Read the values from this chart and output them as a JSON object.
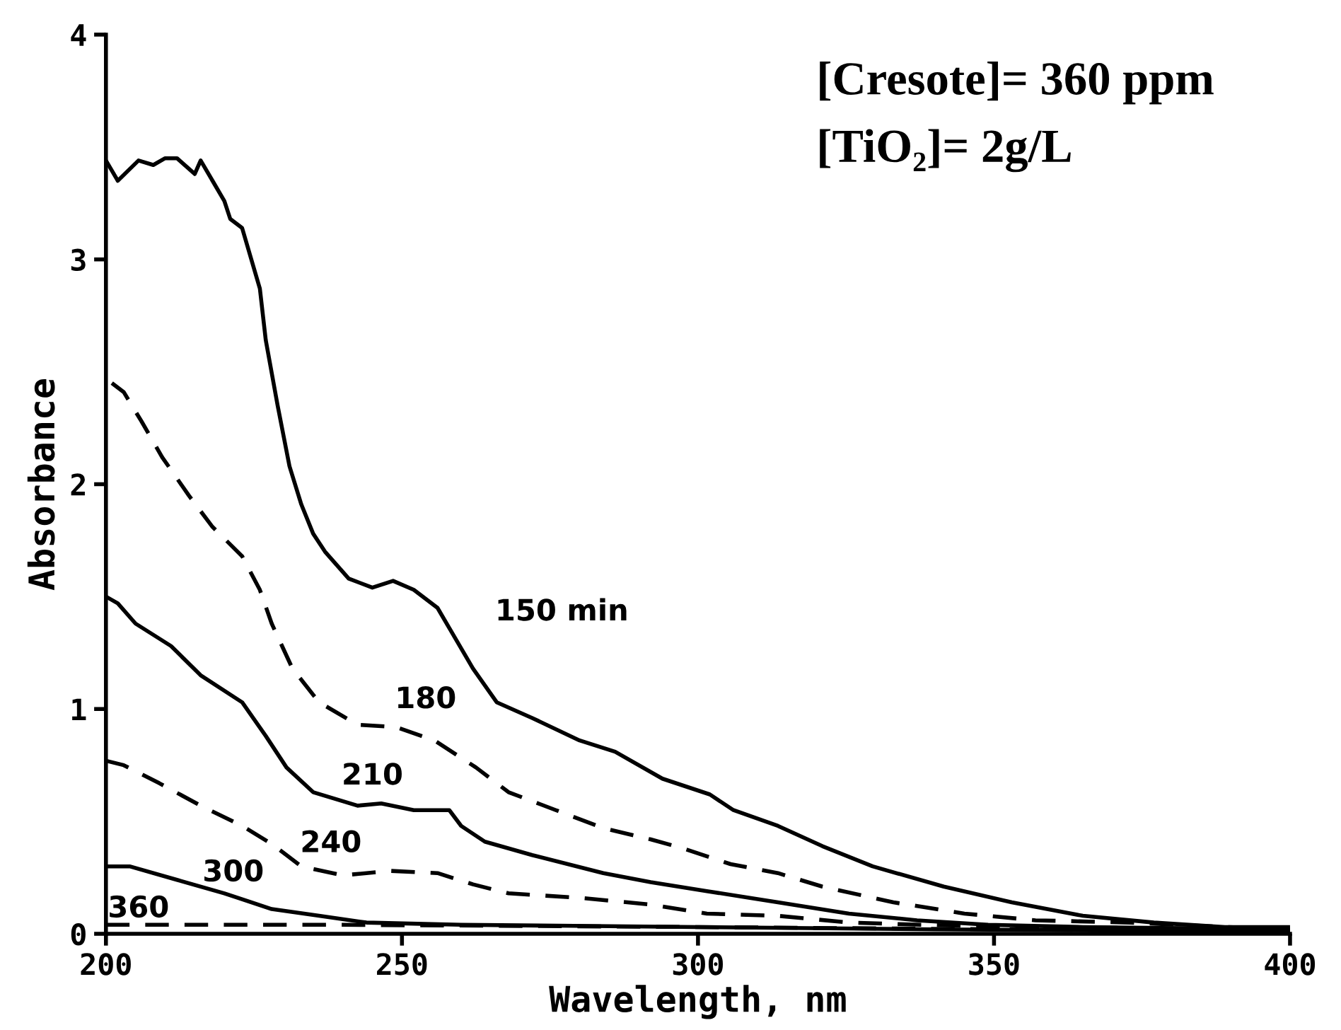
{
  "chart_data": {
    "type": "line",
    "xlabel": "Wavelength, nm",
    "ylabel": "Absorbance",
    "annotations": [
      "[Cresote]= 360 ppm",
      "[TiO₂]= 2g/L"
    ],
    "xlim": [
      200,
      400
    ],
    "xticks": [
      200,
      250,
      300,
      350,
      400
    ],
    "ylim": [
      0,
      4
    ],
    "yticks": [
      0,
      1,
      2,
      3,
      4
    ],
    "grid": false,
    "legend": false,
    "marker": "none",
    "series": [
      {
        "name": "150 min",
        "color": "#000000",
        "line_style": "solid",
        "x": [
          200,
          202,
          205.5,
          208,
          210,
          212,
          215,
          216,
          218,
          220,
          221,
          223,
          226,
          227,
          229,
          231,
          233,
          235,
          237,
          241,
          245,
          248.5,
          252,
          256,
          258,
          262,
          266,
          272,
          280,
          286,
          294,
          302,
          306,
          313.5,
          321,
          329.5,
          341.5,
          353,
          365,
          377,
          389,
          400
        ],
        "values": [
          3.44,
          3.35,
          3.44,
          3.42,
          3.45,
          3.45,
          3.38,
          3.44,
          3.35,
          3.26,
          3.18,
          3.14,
          2.87,
          2.64,
          2.35,
          2.08,
          1.91,
          1.78,
          1.7,
          1.58,
          1.54,
          1.57,
          1.53,
          1.45,
          1.36,
          1.18,
          1.03,
          0.96,
          0.86,
          0.81,
          0.69,
          0.62,
          0.55,
          0.48,
          0.39,
          0.3,
          0.21,
          0.14,
          0.08,
          0.05,
          0.03,
          0.03
        ]
      },
      {
        "name": "180",
        "color": "#000000",
        "line_style": "dashed",
        "x": [
          201,
          203,
          206,
          209.5,
          214,
          218,
          223,
          226,
          228,
          231.5,
          236,
          242.5,
          249,
          255.5,
          262.5,
          268,
          276,
          284,
          292,
          297.5,
          305.5,
          313.5,
          321,
          333,
          345,
          357,
          373,
          389,
          400
        ],
        "values": [
          2.45,
          2.41,
          2.28,
          2.12,
          1.95,
          1.81,
          1.68,
          1.53,
          1.38,
          1.18,
          1.03,
          0.93,
          0.92,
          0.86,
          0.74,
          0.63,
          0.55,
          0.47,
          0.42,
          0.38,
          0.31,
          0.27,
          0.21,
          0.14,
          0.09,
          0.06,
          0.05,
          0.03,
          0.02
        ]
      },
      {
        "name": "210",
        "color": "#000000",
        "line_style": "solid",
        "x": [
          200,
          202,
          205,
          211,
          216,
          223,
          227,
          230.5,
          235,
          242.5,
          246.5,
          252,
          258,
          260,
          264,
          272,
          284,
          292,
          301.5,
          313.5,
          325.5,
          337,
          349,
          365,
          400
        ],
        "values": [
          1.5,
          1.47,
          1.38,
          1.28,
          1.15,
          1.03,
          0.88,
          0.74,
          0.63,
          0.57,
          0.58,
          0.55,
          0.55,
          0.48,
          0.41,
          0.35,
          0.27,
          0.23,
          0.19,
          0.14,
          0.09,
          0.06,
          0.04,
          0.03,
          0.02
        ]
      },
      {
        "name": "240",
        "color": "#000000",
        "line_style": "dashed",
        "x": [
          200,
          203,
          209,
          216,
          223,
          228,
          233,
          240,
          248,
          256,
          262,
          268,
          280,
          292,
          301.5,
          313.5,
          325.5,
          337.5,
          357,
          400
        ],
        "values": [
          0.77,
          0.75,
          0.67,
          0.57,
          0.48,
          0.4,
          0.3,
          0.26,
          0.28,
          0.27,
          0.22,
          0.18,
          0.16,
          0.13,
          0.09,
          0.08,
          0.05,
          0.04,
          0.03,
          0.02
        ]
      },
      {
        "name": "300",
        "color": "#000000",
        "line_style": "solid",
        "x": [
          200,
          204,
          212,
          220,
          228,
          236,
          244,
          260,
          300,
          340,
          400
        ],
        "values": [
          0.3,
          0.3,
          0.24,
          0.18,
          0.11,
          0.08,
          0.05,
          0.04,
          0.03,
          0.02,
          0.01
        ]
      },
      {
        "name": "360",
        "color": "#000000",
        "line_style": "dashed",
        "x": [
          200,
          240,
          300,
          350,
          400
        ],
        "values": [
          0.04,
          0.04,
          0.03,
          0.02,
          0.01
        ]
      }
    ]
  }
}
